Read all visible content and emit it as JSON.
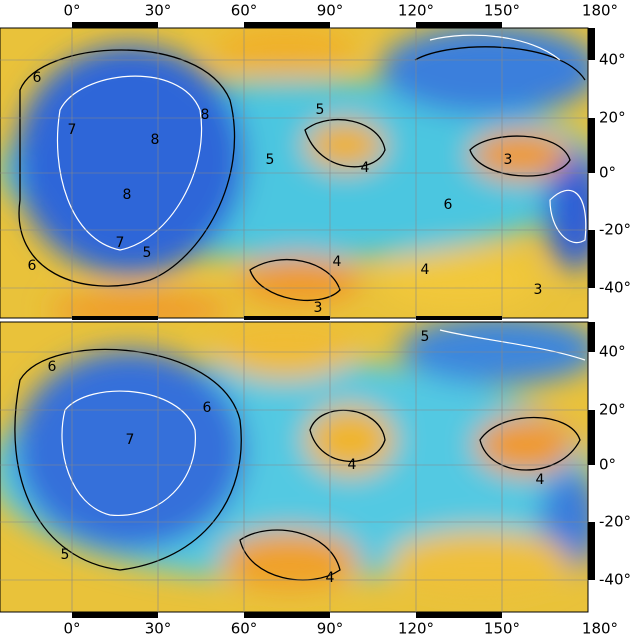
{
  "longitude_labels": [
    "0°",
    "30°",
    "60°",
    "90°",
    "120°",
    "150°",
    "180°"
  ],
  "latitude_labels": [
    "40°",
    "20°",
    "0°",
    "-20°",
    "-40°"
  ],
  "panels": [
    {
      "contour_labels": [
        "6",
        "7",
        "8",
        "8",
        "8",
        "7",
        "5",
        "6",
        "5",
        "5",
        "4",
        "3",
        "6",
        "4",
        "4",
        "3",
        "3"
      ]
    },
    {
      "contour_labels": [
        "6",
        "6",
        "7",
        "4",
        "4",
        "5",
        "4",
        "5"
      ]
    }
  ]
}
